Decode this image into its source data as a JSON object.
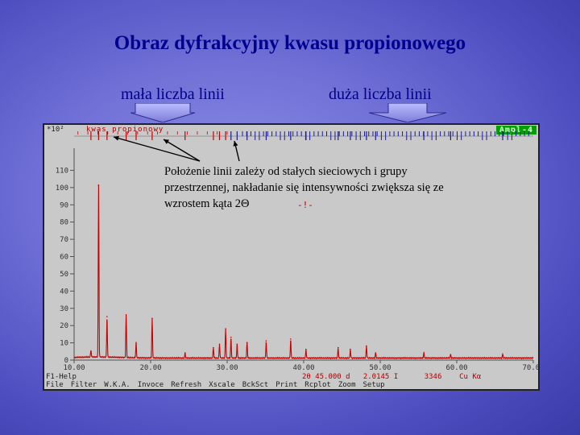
{
  "slide": {
    "title": "Obraz dyfrakcyjny kwasu propionowego",
    "left_label": "mała liczba linii",
    "right_label": "duża liczba linii"
  },
  "screen": {
    "scale_label": "*10²",
    "sample_name": "kwas propionowy",
    "program_badge": "Ampl-4",
    "annotation_line1": "Położenie linii zależy od stałych sieciowych i grupy",
    "annotation_line2": "przestrzennej, nakładanie się intensywności zwiększa się ze",
    "annotation_line3": "wzrostem kąta 2Θ",
    "cursor_mark": "-!-",
    "help_label": "F1-Help",
    "status_2theta_label": "2θ",
    "status_2theta_value": "45.000",
    "status_d_label": "d",
    "status_d_value": "2.0145",
    "status_i_label": "I",
    "status_i_value": "3346",
    "status_anode": "Cu Kα",
    "menu": [
      "File",
      "Filter",
      "W.K.A.",
      "Invoce",
      "Refresh",
      "Xscale",
      "BckSct",
      "Print",
      "Rcplot",
      "Zoom",
      "Setup"
    ],
    "colors": {
      "trace": "#c80000",
      "background": "#c9c9c9",
      "ticks_left": "#c80000",
      "ticks_right": "#1a1aa0",
      "accent": "#00a000"
    }
  },
  "chart_data": {
    "type": "line",
    "title": "",
    "xlabel": "",
    "ylabel": "",
    "xlim": [
      10,
      70
    ],
    "ylim": [
      0,
      120
    ],
    "y_scale_label": "*10²",
    "x_ticks": [
      "10.00",
      "20.00",
      "30.00",
      "40.00",
      "50.00",
      "60.00",
      "70.00"
    ],
    "y_ticks": [
      0,
      10,
      20,
      30,
      40,
      50,
      60,
      70,
      80,
      90,
      100,
      110
    ],
    "series": [
      {
        "peaks": [
          {
            "x": 12.2,
            "y": 4
          },
          {
            "x": 13.2,
            "y": 100
          },
          {
            "x": 14.3,
            "y": 24
          },
          {
            "x": 16.8,
            "y": 25
          },
          {
            "x": 18.1,
            "y": 9
          },
          {
            "x": 20.2,
            "y": 23
          },
          {
            "x": 24.5,
            "y": 3
          },
          {
            "x": 28.2,
            "y": 6
          },
          {
            "x": 29.0,
            "y": 8
          },
          {
            "x": 29.8,
            "y": 17
          },
          {
            "x": 30.5,
            "y": 12
          },
          {
            "x": 31.3,
            "y": 8
          },
          {
            "x": 32.6,
            "y": 9
          },
          {
            "x": 35.1,
            "y": 10
          },
          {
            "x": 38.3,
            "y": 11
          },
          {
            "x": 40.3,
            "y": 5
          },
          {
            "x": 44.5,
            "y": 6
          },
          {
            "x": 46.1,
            "y": 5
          },
          {
            "x": 48.2,
            "y": 7
          },
          {
            "x": 49.4,
            "y": 3
          },
          {
            "x": 55.7,
            "y": 3
          },
          {
            "x": 59.2,
            "y": 2
          },
          {
            "x": 66.0,
            "y": 2
          }
        ],
        "baseline": 1.2
      }
    ]
  }
}
